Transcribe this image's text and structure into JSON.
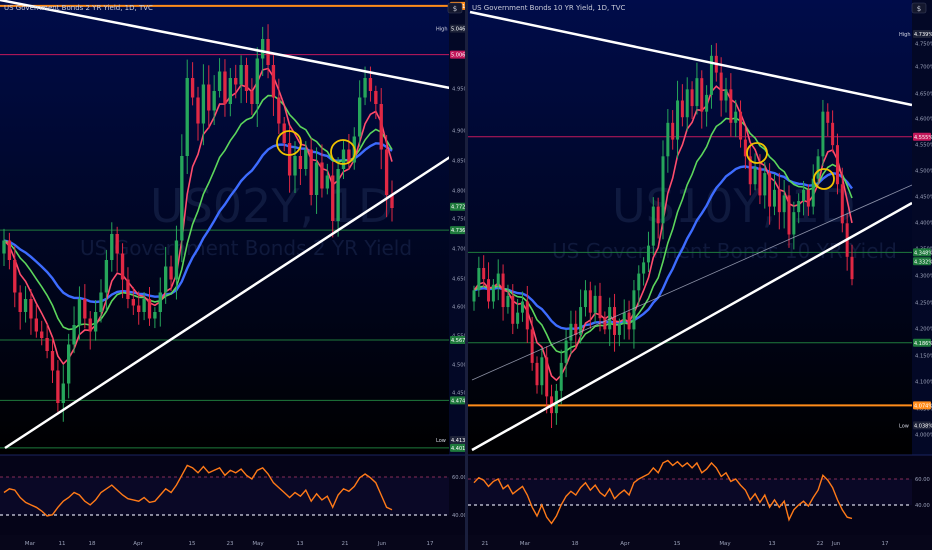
{
  "panels": [
    {
      "id": "left",
      "title": "US Government Bonds 2 YR Yield, 1D, TVC",
      "watermark_symbol": "US02Y, 1D",
      "watermark_name": "US Government Bonds 2 YR Yield",
      "currency_button": "$"
    },
    {
      "id": "right",
      "title": "US Government Bonds 10 YR Yield, 1D, TVC",
      "watermark_symbol": "US10Y, 1D",
      "watermark_name": "US Government Bonds 10 YR Yield",
      "currency_button": "$"
    }
  ],
  "colors": {
    "background_top": "#000c4a",
    "background_bottom": "#000000",
    "up_candle": "#26a65b",
    "down_candle": "#e02844",
    "ema_fast": "#ff4d6d",
    "ema_mid": "#5cd65c",
    "ema_slow": "#3d6cff",
    "trendline": "#ffffff",
    "circle": "#f2c200",
    "rsi_line": "#ff7a18",
    "resistance_orange": "#ff8c1a",
    "resistance_red": "#c2185b",
    "support_green": "#1e7a3c"
  },
  "chart_data": [
    {
      "type": "candlestick",
      "title": "US Government Bonds 2 YR Yield, 1D, TVC",
      "y_axis_ticks": [
        "4.950%",
        "4.900%",
        "4.850%",
        "4.800%",
        "4.750%",
        "4.700%",
        "4.650%",
        "4.600%",
        "4.550%",
        "4.500%",
        "4.450%"
      ],
      "ylim": [
        4.39,
        5.09
      ],
      "x_axis_ticks": [
        "Mar",
        "11",
        "18",
        "Apr",
        "15",
        "23",
        "May",
        "13",
        "21",
        "Jun",
        "17"
      ],
      "price_labels": [
        {
          "text": "5.081%",
          "value": 5.081,
          "kind": "orange"
        },
        {
          "text": "5.046%",
          "value": 5.046,
          "prefix": "High",
          "kind": "grey"
        },
        {
          "text": "5.006%",
          "value": 5.006,
          "kind": "red"
        },
        {
          "text": "4.772%",
          "value": 4.772,
          "kind": "green"
        },
        {
          "text": "4.736%",
          "value": 4.736,
          "kind": "green"
        },
        {
          "text": "4.567%",
          "value": 4.567,
          "kind": "green"
        },
        {
          "text": "4.474%",
          "value": 4.474,
          "kind": "green"
        },
        {
          "text": "4.413%",
          "value": 4.413,
          "prefix": "Low",
          "kind": "grey"
        },
        {
          "text": "4.401%",
          "value": 4.401,
          "kind": "green"
        }
      ],
      "horizontal_levels": [
        {
          "value": 5.081,
          "kind": "orange"
        },
        {
          "value": 5.006,
          "kind": "red"
        },
        {
          "value": 4.736,
          "kind": "green"
        },
        {
          "value": 4.567,
          "kind": "green"
        },
        {
          "value": 4.474,
          "kind": "green"
        },
        {
          "value": 4.401,
          "kind": "green"
        }
      ],
      "closes": [
        4.72,
        4.69,
        4.64,
        4.61,
        4.63,
        4.6,
        4.58,
        4.57,
        4.55,
        4.52,
        4.47,
        4.5,
        4.56,
        4.59,
        4.63,
        4.6,
        4.58,
        4.61,
        4.64,
        4.69,
        4.73,
        4.7,
        4.66,
        4.63,
        4.62,
        4.61,
        4.63,
        4.6,
        4.61,
        4.64,
        4.68,
        4.66,
        4.72,
        4.85,
        4.97,
        4.94,
        4.9,
        4.96,
        4.92,
        4.95,
        4.98,
        4.93,
        4.97,
        4.96,
        4.99,
        4.95,
        4.93,
        5.0,
        5.03,
        4.99,
        4.94,
        4.9,
        4.87,
        4.82,
        4.85,
        4.83,
        4.86,
        4.79,
        4.84,
        4.8,
        4.82,
        4.75,
        4.83,
        4.86,
        4.84,
        4.88,
        4.94,
        4.97,
        4.95,
        4.93,
        4.86,
        4.79,
        4.77
      ],
      "rsi": {
        "levels": [
          "60.00",
          "40.00"
        ],
        "values": [
          52,
          55,
          54,
          48,
          44,
          42,
          40,
          37,
          33,
          34,
          40,
          45,
          48,
          52,
          50,
          45,
          42,
          46,
          52,
          55,
          58,
          54,
          50,
          47,
          46,
          45,
          48,
          44,
          45,
          50,
          55,
          52,
          58,
          66,
          74,
          72,
          68,
          73,
          68,
          70,
          72,
          66,
          70,
          68,
          71,
          66,
          63,
          70,
          72,
          67,
          60,
          56,
          52,
          48,
          52,
          49,
          54,
          45,
          51,
          46,
          49,
          40,
          50,
          55,
          53,
          57,
          64,
          67,
          64,
          60,
          50,
          40,
          38
        ]
      }
    },
    {
      "type": "candlestick",
      "title": "US Government Bonds 10 YR Yield, 1D, TVC",
      "y_axis_ticks": [
        "4.750%",
        "4.700%",
        "4.650%",
        "4.600%",
        "4.550%",
        "4.500%",
        "4.450%",
        "4.400%",
        "4.350%",
        "4.300%",
        "4.250%",
        "4.200%",
        "4.150%",
        "4.100%",
        "4.050%",
        "4.000%"
      ],
      "ylim": [
        3.985,
        4.8
      ],
      "x_axis_ticks": [
        "21",
        "Mar",
        "18",
        "Apr",
        "15",
        "May",
        "13",
        "22",
        "Jun",
        "17"
      ],
      "price_labels": [
        {
          "text": "4.739%",
          "value": 4.739,
          "prefix": "High",
          "kind": "grey"
        },
        {
          "text": "4.555%",
          "value": 4.555,
          "kind": "red"
        },
        {
          "text": "4.348%",
          "value": 4.348,
          "kind": "green"
        },
        {
          "text": "4.332%",
          "value": 4.332,
          "kind": "green"
        },
        {
          "text": "4.186%",
          "value": 4.186,
          "kind": "green"
        },
        {
          "text": "4.074%",
          "value": 4.074,
          "kind": "orange"
        },
        {
          "text": "4.038%",
          "value": 4.038,
          "prefix": "Low",
          "kind": "grey"
        }
      ],
      "horizontal_levels": [
        {
          "value": 4.555,
          "kind": "red"
        },
        {
          "value": 4.348,
          "kind": "green"
        },
        {
          "value": 4.186,
          "kind": "green"
        },
        {
          "value": 4.074,
          "kind": "orange"
        }
      ],
      "closes": [
        4.28,
        4.32,
        4.3,
        4.26,
        4.29,
        4.31,
        4.25,
        4.27,
        4.22,
        4.24,
        4.26,
        4.21,
        4.15,
        4.11,
        4.16,
        4.09,
        4.06,
        4.1,
        4.15,
        4.19,
        4.22,
        4.2,
        4.25,
        4.28,
        4.24,
        4.27,
        4.23,
        4.21,
        4.25,
        4.2,
        4.22,
        4.24,
        4.21,
        4.28,
        4.31,
        4.33,
        4.36,
        4.43,
        4.4,
        4.52,
        4.58,
        4.55,
        4.62,
        4.59,
        4.64,
        4.61,
        4.66,
        4.6,
        4.63,
        4.7,
        4.67,
        4.62,
        4.64,
        4.58,
        4.6,
        4.55,
        4.52,
        4.47,
        4.5,
        4.45,
        4.49,
        4.43,
        4.46,
        4.42,
        4.45,
        4.38,
        4.42,
        4.44,
        4.46,
        4.43,
        4.48,
        4.52,
        4.6,
        4.58,
        4.54,
        4.47,
        4.4,
        4.34,
        4.3
      ],
      "rsi": {
        "levels": [
          "60.00",
          "40.00"
        ],
        "values": [
          60,
          64,
          62,
          57,
          61,
          63,
          55,
          58,
          51,
          54,
          57,
          50,
          40,
          33,
          42,
          32,
          27,
          33,
          42,
          49,
          53,
          50,
          56,
          60,
          54,
          58,
          52,
          49,
          55,
          47,
          51,
          54,
          50,
          60,
          63,
          65,
          67,
          72,
          68,
          76,
          78,
          74,
          77,
          73,
          76,
          72,
          76,
          68,
          71,
          76,
          72,
          65,
          68,
          61,
          63,
          58,
          54,
          46,
          51,
          44,
          50,
          40,
          46,
          40,
          45,
          30,
          38,
          42,
          45,
          41,
          48,
          54,
          66,
          62,
          56,
          46,
          38,
          32,
          31
        ]
      }
    }
  ]
}
